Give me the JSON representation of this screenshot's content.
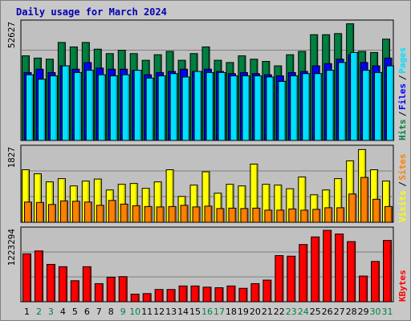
{
  "title": "Daily usage for March 2024",
  "chart_data": [
    {
      "type": "bar",
      "panel": "hits-files-pages",
      "ymax_label": "52627",
      "ymax": 52627,
      "legend": [
        {
          "name": "Hits",
          "color": "#008040"
        },
        {
          "name": "Files",
          "color": "#0000ff"
        },
        {
          "name": "Pages",
          "color": "#00e0ff"
        }
      ],
      "legend_sep": "/",
      "categories": [
        "1",
        "2",
        "3",
        "4",
        "5",
        "6",
        "7",
        "8",
        "9",
        "10",
        "11",
        "12",
        "13",
        "14",
        "15",
        "16",
        "17",
        "18",
        "19",
        "20",
        "21",
        "22",
        "23",
        "24",
        "25",
        "26",
        "27",
        "28",
        "29",
        "30",
        "31"
      ],
      "series": [
        {
          "name": "Hits",
          "values": [
            38000,
            37000,
            36500,
            44000,
            42000,
            44000,
            41000,
            39000,
            40500,
            39000,
            36000,
            38500,
            40000,
            36000,
            39000,
            42000,
            36000,
            35000,
            38000,
            36500,
            35500,
            33500,
            38500,
            40000,
            47500,
            47500,
            48000,
            52400,
            40000,
            39500,
            45500
          ]
        },
        {
          "name": "Files",
          "values": [
            30500,
            32000,
            30500,
            33500,
            32000,
            35000,
            32500,
            32000,
            32000,
            31500,
            29500,
            30500,
            31000,
            32000,
            31000,
            32000,
            31000,
            30000,
            30500,
            30000,
            29500,
            29000,
            30500,
            31000,
            33500,
            34500,
            36500,
            38500,
            35000,
            33500,
            37000
          ]
        },
        {
          "name": "Pages",
          "values": [
            29500,
            27500,
            29000,
            33500,
            30500,
            31500,
            29500,
            29000,
            29500,
            31500,
            28000,
            29000,
            30000,
            28500,
            31000,
            30500,
            30500,
            29000,
            29000,
            29000,
            28500,
            26500,
            29000,
            30000,
            30000,
            31500,
            35000,
            39500,
            31500,
            30500,
            33500
          ]
        }
      ]
    },
    {
      "type": "bar",
      "panel": "visits-sites",
      "ymax_label": "1827",
      "ymax": 1827,
      "legend": [
        {
          "name": "Visits",
          "color": "#ffff00"
        },
        {
          "name": "Sites",
          "color": "#ff8000"
        }
      ],
      "legend_sep": "/",
      "categories": [
        "1",
        "2",
        "3",
        "4",
        "5",
        "6",
        "7",
        "8",
        "9",
        "10",
        "11",
        "12",
        "13",
        "14",
        "15",
        "16",
        "17",
        "18",
        "19",
        "20",
        "21",
        "22",
        "23",
        "24",
        "25",
        "26",
        "27",
        "28",
        "29",
        "30",
        "31"
      ],
      "series": [
        {
          "name": "Visits",
          "values": [
            1300,
            1200,
            1000,
            1080,
            900,
            1020,
            1070,
            800,
            940,
            960,
            840,
            1000,
            1300,
            640,
            920,
            1250,
            720,
            940,
            900,
            1440,
            940,
            920,
            830,
            1120,
            680,
            800,
            1080,
            1520,
            1800,
            1300,
            1020
          ]
        },
        {
          "name": "Sites",
          "values": [
            500,
            490,
            440,
            530,
            520,
            500,
            420,
            540,
            450,
            410,
            390,
            380,
            390,
            420,
            380,
            400,
            340,
            350,
            340,
            350,
            300,
            300,
            330,
            300,
            320,
            360,
            360,
            700,
            1110,
            570,
            390
          ]
        }
      ]
    },
    {
      "type": "bar",
      "panel": "kbytes",
      "ymax_label": "1223294",
      "ymax": 1223294,
      "legend": [
        {
          "name": "KBytes",
          "color": "#ff0000"
        }
      ],
      "categories": [
        "1",
        "2",
        "3",
        "4",
        "5",
        "6",
        "7",
        "8",
        "9",
        "10",
        "11",
        "12",
        "13",
        "14",
        "15",
        "16",
        "17",
        "18",
        "19",
        "20",
        "21",
        "22",
        "23",
        "24",
        "25",
        "26",
        "27",
        "28",
        "29",
        "30",
        "31"
      ],
      "series": [
        {
          "name": "KBytes",
          "values": [
            820000,
            870000,
            640000,
            600000,
            360000,
            600000,
            310000,
            420000,
            430000,
            130000,
            140000,
            210000,
            210000,
            270000,
            270000,
            250000,
            240000,
            270000,
            230000,
            310000,
            370000,
            790000,
            780000,
            980000,
            1110000,
            1223294,
            1160000,
            1030000,
            440000,
            690000,
            1050000
          ]
        }
      ]
    }
  ],
  "weekend_days": [
    2,
    3,
    9,
    10,
    16,
    17,
    23,
    24,
    30,
    31
  ],
  "colors": {
    "day_normal": "#000000",
    "day_weekend": "#008040",
    "panel_bg": "#c0c0c0",
    "gridline": "#808080",
    "outline": "#000000"
  }
}
